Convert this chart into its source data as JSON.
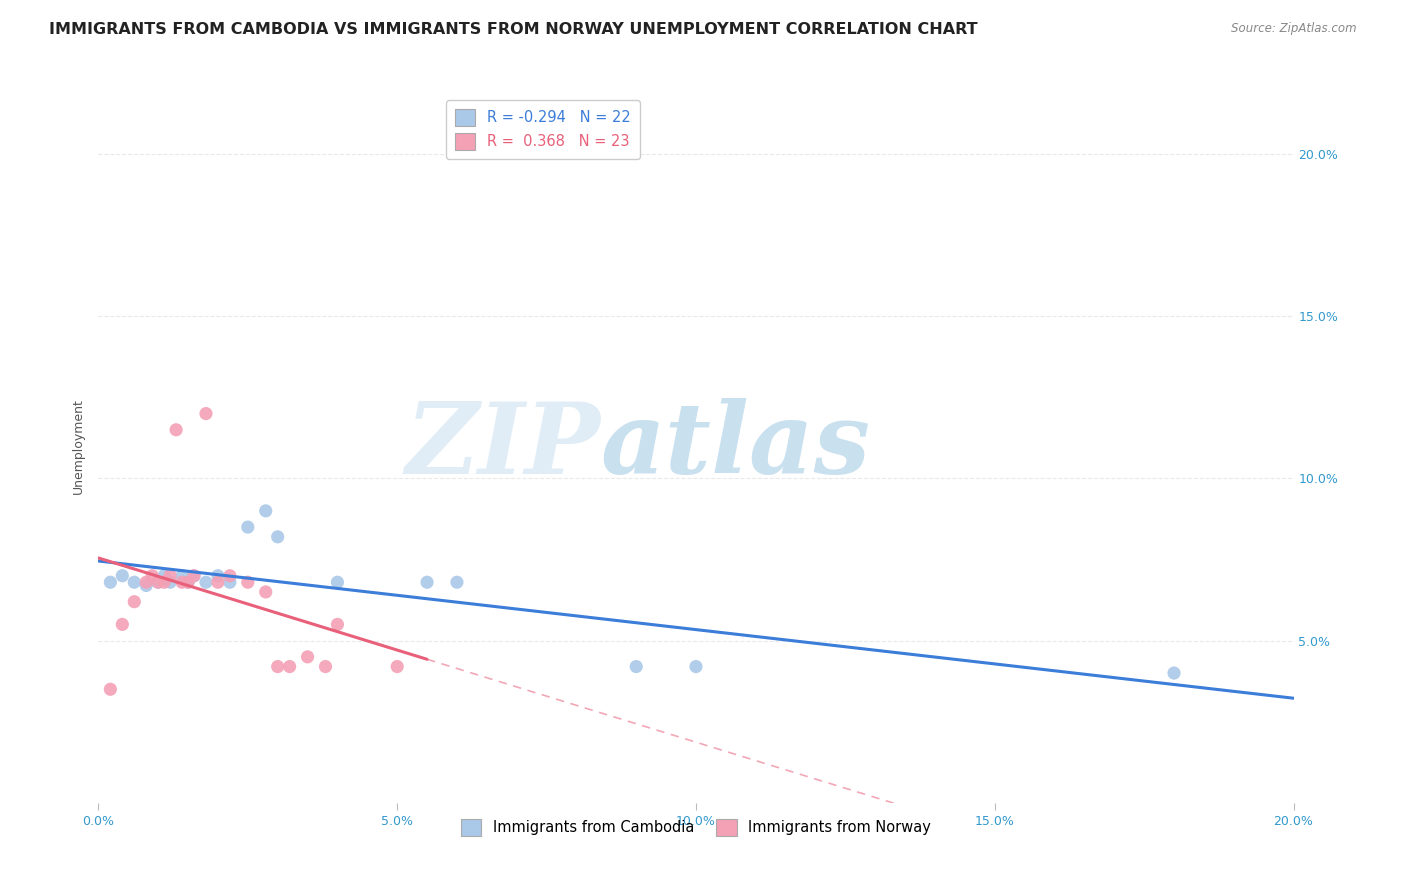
{
  "title": "IMMIGRANTS FROM CAMBODIA VS IMMIGRANTS FROM NORWAY UNEMPLOYMENT CORRELATION CHART",
  "source": "Source: ZipAtlas.com",
  "ylabel": "Unemployment",
  "xlim": [
    0.0,
    0.2
  ],
  "ylim": [
    0.0,
    0.22
  ],
  "xticks": [
    0.0,
    0.05,
    0.1,
    0.15,
    0.2
  ],
  "yticks": [
    0.05,
    0.1,
    0.15,
    0.2
  ],
  "ytick_labels": [
    "5.0%",
    "10.0%",
    "15.0%",
    "20.0%"
  ],
  "xtick_labels": [
    "0.0%",
    "5.0%",
    "10.0%",
    "15.0%",
    "20.0%"
  ],
  "grid_color": "#e0e0e0",
  "background_color": "#ffffff",
  "watermark_zip": "ZIP",
  "watermark_atlas": "atlas",
  "cambodia_color": "#aac8e8",
  "norway_color": "#f4a0b5",
  "cambodia_line_color": "#3b7dd8",
  "norway_line_color": "#e8607a",
  "R_cambodia": -0.294,
  "N_cambodia": 22,
  "R_norway": 0.368,
  "N_norway": 23,
  "cambodia_x": [
    0.002,
    0.004,
    0.006,
    0.008,
    0.01,
    0.011,
    0.012,
    0.014,
    0.015,
    0.016,
    0.018,
    0.02,
    0.022,
    0.025,
    0.028,
    0.03,
    0.04,
    0.055,
    0.06,
    0.09,
    0.1,
    0.18
  ],
  "cambodia_y": [
    0.068,
    0.07,
    0.068,
    0.067,
    0.068,
    0.07,
    0.068,
    0.07,
    0.068,
    0.07,
    0.068,
    0.07,
    0.068,
    0.085,
    0.09,
    0.082,
    0.068,
    0.068,
    0.068,
    0.042,
    0.042,
    0.04
  ],
  "norway_x": [
    0.002,
    0.004,
    0.006,
    0.008,
    0.009,
    0.01,
    0.011,
    0.012,
    0.013,
    0.014,
    0.015,
    0.016,
    0.018,
    0.02,
    0.022,
    0.025,
    0.028,
    0.03,
    0.032,
    0.035,
    0.038,
    0.04,
    0.05
  ],
  "norway_y": [
    0.035,
    0.055,
    0.062,
    0.068,
    0.07,
    0.068,
    0.068,
    0.07,
    0.115,
    0.068,
    0.068,
    0.07,
    0.12,
    0.068,
    0.07,
    0.068,
    0.065,
    0.042,
    0.042,
    0.045,
    0.042,
    0.055,
    0.042
  ],
  "title_fontsize": 11.5,
  "axis_label_fontsize": 9,
  "tick_fontsize": 9,
  "legend_fontsize": 10.5
}
